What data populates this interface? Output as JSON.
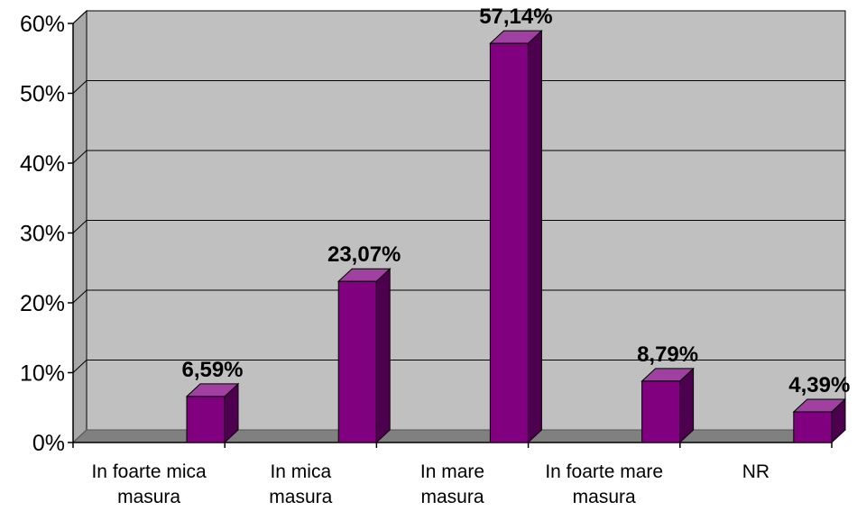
{
  "chart_data": {
    "type": "bar",
    "style": "3d-column",
    "categories": [
      [
        "In foarte mica",
        "masura"
      ],
      [
        "In mica",
        "masura"
      ],
      [
        "In mare",
        "masura"
      ],
      [
        "In foarte mare",
        "masura"
      ],
      [
        "NR"
      ]
    ],
    "values": [
      6.59,
      23.07,
      57.14,
      8.79,
      4.39
    ],
    "data_labels": [
      "6,59%",
      "23,07%",
      "57,14%",
      "8,79%",
      "4,39%"
    ],
    "y_ticks": [
      "0%",
      "10%",
      "20%",
      "30%",
      "40%",
      "50%",
      "60%"
    ],
    "ylim": [
      0,
      60
    ],
    "grid": true,
    "legend": "none",
    "colors": {
      "bar_front": "#800080",
      "bar_side": "#4d004d",
      "bar_top": "#a040a0",
      "plot_back": "#c0c0c0",
      "plot_wall": "#a8a8a8",
      "floor": "#808080"
    }
  }
}
